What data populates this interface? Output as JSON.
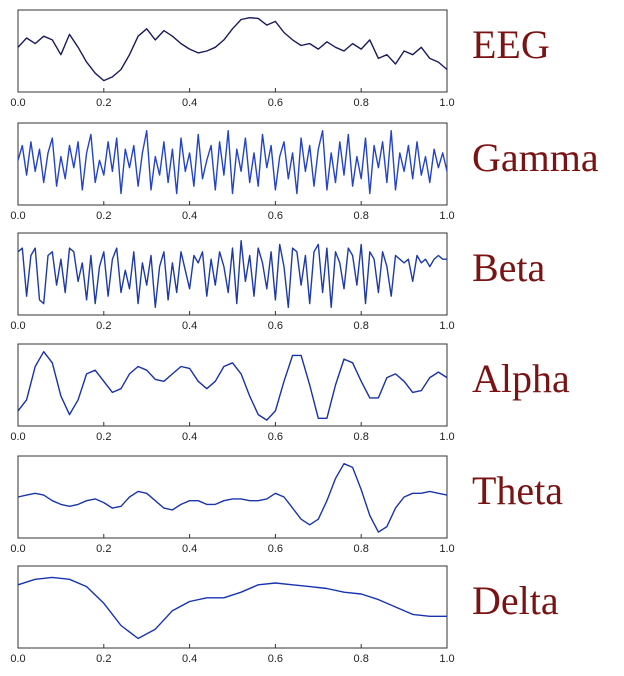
{
  "chart_data": [
    {
      "type": "line",
      "title": "EEG",
      "color": "#1b1b5c",
      "background": "#fbf6ef",
      "x": [
        0,
        0.02,
        0.04,
        0.06,
        0.08,
        0.1,
        0.12,
        0.14,
        0.16,
        0.18,
        0.2,
        0.22,
        0.24,
        0.26,
        0.28,
        0.3,
        0.32,
        0.34,
        0.36,
        0.38,
        0.4,
        0.42,
        0.44,
        0.46,
        0.48,
        0.5,
        0.52,
        0.54,
        0.56,
        0.58,
        0.6,
        0.62,
        0.64,
        0.66,
        0.68,
        0.7,
        0.72,
        0.74,
        0.76,
        0.78,
        0.8,
        0.82,
        0.84,
        0.86,
        0.88,
        0.9,
        0.92,
        0.94,
        0.96,
        0.98,
        1
      ],
      "values": [
        0.1,
        0.35,
        0.2,
        0.4,
        0.3,
        -0.1,
        0.45,
        0.1,
        -0.3,
        -0.6,
        -0.8,
        -0.7,
        -0.5,
        -0.1,
        0.4,
        0.6,
        0.3,
        0.55,
        0.4,
        0.2,
        0.05,
        -0.05,
        0.0,
        0.1,
        0.3,
        0.6,
        0.85,
        0.9,
        0.88,
        0.7,
        0.8,
        0.5,
        0.3,
        0.15,
        0.2,
        0.05,
        0.25,
        0.1,
        0.0,
        0.2,
        0.05,
        0.3,
        -0.2,
        -0.1,
        -0.35,
        0.0,
        -0.1,
        0.1,
        -0.2,
        -0.3,
        -0.5
      ],
      "xlim": [
        0,
        1
      ],
      "ylim": [
        -1,
        1
      ],
      "xticks": [
        {
          "value": 0,
          "label": "0.0"
        },
        {
          "value": 0.2,
          "label": "0.2"
        },
        {
          "value": 0.4,
          "label": "0.4"
        },
        {
          "value": 0.6,
          "label": "0.6"
        },
        {
          "value": 0.8,
          "label": "0.8"
        },
        {
          "value": 1,
          "label": "1.0"
        }
      ]
    },
    {
      "type": "line",
      "title": "Gamma",
      "color": "#2444c8",
      "x": [
        0,
        0.01,
        0.02,
        0.03,
        0.04,
        0.05,
        0.06,
        0.07,
        0.08,
        0.09,
        0.1,
        0.11,
        0.12,
        0.13,
        0.14,
        0.15,
        0.16,
        0.17,
        0.18,
        0.19,
        0.2,
        0.21,
        0.22,
        0.23,
        0.24,
        0.25,
        0.26,
        0.27,
        0.28,
        0.29,
        0.3,
        0.31,
        0.32,
        0.33,
        0.34,
        0.35,
        0.36,
        0.37,
        0.38,
        0.39,
        0.4,
        0.41,
        0.42,
        0.43,
        0.44,
        0.45,
        0.46,
        0.47,
        0.48,
        0.49,
        0.5,
        0.51,
        0.52,
        0.53,
        0.54,
        0.55,
        0.56,
        0.57,
        0.58,
        0.59,
        0.6,
        0.61,
        0.62,
        0.63,
        0.64,
        0.65,
        0.66,
        0.67,
        0.68,
        0.69,
        0.7,
        0.71,
        0.72,
        0.73,
        0.74,
        0.75,
        0.76,
        0.77,
        0.78,
        0.79,
        0.8,
        0.81,
        0.82,
        0.83,
        0.84,
        0.85,
        0.86,
        0.87,
        0.88,
        0.89,
        0.9,
        0.91,
        0.92,
        0.93,
        0.94,
        0.95,
        0.96,
        0.97,
        0.98,
        0.99,
        1
      ],
      "values": [
        0.1,
        0.5,
        -0.3,
        0.6,
        -0.2,
        0.4,
        -0.5,
        0.3,
        0.7,
        -0.6,
        0.2,
        -0.4,
        0.5,
        -0.1,
        0.6,
        -0.7,
        0.3,
        0.8,
        -0.5,
        0.1,
        -0.3,
        0.6,
        -0.2,
        0.7,
        -0.8,
        0.4,
        -0.1,
        0.5,
        -0.6,
        0.3,
        0.9,
        -0.7,
        0.2,
        -0.3,
        0.6,
        -0.5,
        0.4,
        -0.8,
        0.7,
        -0.2,
        0.3,
        -0.6,
        0.8,
        -0.4,
        0.1,
        0.5,
        -0.7,
        0.6,
        -0.3,
        0.9,
        -0.8,
        0.4,
        -0.2,
        0.7,
        -0.5,
        0.3,
        -0.6,
        0.8,
        -0.1,
        0.5,
        -0.7,
        0.2,
        0.6,
        -0.4,
        0.3,
        -0.8,
        0.7,
        -0.2,
        0.5,
        -0.6,
        0.4,
        0.9,
        -0.7,
        0.3,
        -0.5,
        0.6,
        -0.3,
        0.8,
        -0.6,
        0.2,
        -0.4,
        0.7,
        -0.8,
        0.5,
        -0.1,
        0.6,
        -0.5,
        0.9,
        -0.7,
        0.3,
        -0.2,
        0.5,
        -0.4,
        0.6,
        -0.3,
        0.2,
        -0.5,
        0.4,
        -0.1,
        0.3,
        -0.2
      ],
      "xlim": [
        0,
        1
      ],
      "ylim": [
        -1,
        1
      ],
      "xticks": [
        {
          "value": 0,
          "label": "0.0"
        },
        {
          "value": 0.2,
          "label": "0.2"
        },
        {
          "value": 0.4,
          "label": "0.4"
        },
        {
          "value": 0.6,
          "label": "0.6"
        },
        {
          "value": 0.8,
          "label": "0.8"
        },
        {
          "value": 1,
          "label": "1.0"
        }
      ]
    },
    {
      "type": "line",
      "title": "Beta",
      "color": "#1d3aa8",
      "x": [
        0,
        0.01,
        0.02,
        0.03,
        0.04,
        0.05,
        0.06,
        0.07,
        0.08,
        0.09,
        0.1,
        0.11,
        0.12,
        0.13,
        0.14,
        0.15,
        0.16,
        0.17,
        0.18,
        0.19,
        0.2,
        0.21,
        0.22,
        0.23,
        0.24,
        0.25,
        0.26,
        0.27,
        0.28,
        0.29,
        0.3,
        0.31,
        0.32,
        0.33,
        0.34,
        0.35,
        0.36,
        0.37,
        0.38,
        0.39,
        0.4,
        0.41,
        0.42,
        0.43,
        0.44,
        0.45,
        0.46,
        0.47,
        0.48,
        0.49,
        0.5,
        0.51,
        0.52,
        0.53,
        0.54,
        0.55,
        0.56,
        0.57,
        0.58,
        0.59,
        0.6,
        0.61,
        0.62,
        0.63,
        0.64,
        0.65,
        0.66,
        0.67,
        0.68,
        0.69,
        0.7,
        0.71,
        0.72,
        0.73,
        0.74,
        0.75,
        0.76,
        0.77,
        0.78,
        0.79,
        0.8,
        0.81,
        0.82,
        0.83,
        0.84,
        0.85,
        0.86,
        0.87,
        0.88,
        0.89,
        0.9,
        0.91,
        0.92,
        0.93,
        0.94,
        0.95,
        0.96,
        0.97,
        0.98,
        0.99,
        1
      ],
      "values": [
        0.6,
        0.7,
        -0.6,
        0.5,
        0.7,
        -0.7,
        -0.8,
        0.5,
        0.6,
        -0.3,
        0.4,
        -0.5,
        0.7,
        0.6,
        -0.2,
        0.3,
        -0.7,
        0.5,
        -0.8,
        0.2,
        0.6,
        -0.6,
        0.4,
        0.7,
        -0.5,
        0.1,
        -0.4,
        0.6,
        -0.8,
        0.3,
        -0.3,
        0.5,
        -0.9,
        0.2,
        0.6,
        -0.7,
        0.3,
        -0.5,
        0.6,
        0.1,
        -0.4,
        0.5,
        0.3,
        0.6,
        -0.6,
        0.4,
        -0.3,
        0.6,
        0.2,
        -0.5,
        0.7,
        -0.8,
        0.9,
        -0.2,
        0.5,
        -0.6,
        0.7,
        0.3,
        -0.4,
        0.6,
        -0.7,
        0.8,
        0.2,
        -0.9,
        0.7,
        0.6,
        -0.3,
        0.5,
        -0.8,
        0.6,
        0.8,
        -0.5,
        0.7,
        -0.9,
        0.6,
        0.3,
        -0.4,
        0.7,
        0.5,
        -0.3,
        0.8,
        -0.8,
        0.6,
        0.4,
        -0.5,
        0.6,
        0.2,
        -0.6,
        0.5,
        0.4,
        0.3,
        0.4,
        -0.2,
        0.5,
        0.3,
        0.4,
        0.2,
        0.4,
        0.5,
        0.4,
        0.4
      ],
      "xlim": [
        0,
        1
      ],
      "ylim": [
        -1,
        1
      ],
      "xticks": [
        {
          "value": 0,
          "label": "0.0"
        },
        {
          "value": 0.2,
          "label": "0.2"
        },
        {
          "value": 0.4,
          "label": "0.4"
        },
        {
          "value": 0.6,
          "label": "0.6"
        },
        {
          "value": 0.8,
          "label": "0.8"
        },
        {
          "value": 1,
          "label": "1.0"
        }
      ]
    },
    {
      "type": "line",
      "title": "Alpha",
      "color": "#1832a6",
      "x": [
        0,
        0.02,
        0.04,
        0.06,
        0.08,
        0.1,
        0.12,
        0.14,
        0.16,
        0.18,
        0.2,
        0.22,
        0.24,
        0.26,
        0.28,
        0.3,
        0.32,
        0.34,
        0.36,
        0.38,
        0.4,
        0.42,
        0.44,
        0.46,
        0.48,
        0.5,
        0.52,
        0.54,
        0.56,
        0.58,
        0.6,
        0.62,
        0.64,
        0.66,
        0.68,
        0.7,
        0.72,
        0.74,
        0.76,
        0.78,
        0.8,
        0.82,
        0.84,
        0.86,
        0.88,
        0.9,
        0.92,
        0.94,
        0.96,
        0.98,
        1
      ],
      "values": [
        -0.7,
        -0.4,
        0.5,
        0.9,
        0.6,
        -0.3,
        -0.8,
        -0.4,
        0.3,
        0.4,
        0.1,
        -0.2,
        -0.1,
        0.3,
        0.5,
        0.4,
        0.15,
        0.1,
        0.3,
        0.5,
        0.45,
        0.1,
        -0.1,
        0.1,
        0.5,
        0.6,
        0.3,
        -0.3,
        -0.8,
        -0.95,
        -0.7,
        0.1,
        0.8,
        0.8,
        0.0,
        -0.9,
        -0.9,
        0.0,
        0.7,
        0.6,
        0.1,
        -0.35,
        -0.35,
        0.2,
        0.3,
        0.1,
        -0.2,
        -0.15,
        0.2,
        0.35,
        0.2
      ],
      "xlim": [
        0,
        1
      ],
      "ylim": [
        -1,
        1
      ],
      "xticks": [
        {
          "value": 0,
          "label": "0.0"
        },
        {
          "value": 0.2,
          "label": "0.2"
        },
        {
          "value": 0.4,
          "label": "0.4"
        },
        {
          "value": 0.6,
          "label": "0.6"
        },
        {
          "value": 0.8,
          "label": "0.8"
        },
        {
          "value": 1,
          "label": "1.0"
        }
      ]
    },
    {
      "type": "line",
      "title": "Theta",
      "color": "#1a36a8",
      "x": [
        0,
        0.02,
        0.04,
        0.06,
        0.08,
        0.1,
        0.12,
        0.14,
        0.16,
        0.18,
        0.2,
        0.22,
        0.24,
        0.26,
        0.28,
        0.3,
        0.32,
        0.34,
        0.36,
        0.38,
        0.4,
        0.42,
        0.44,
        0.46,
        0.48,
        0.5,
        0.52,
        0.54,
        0.56,
        0.58,
        0.6,
        0.62,
        0.64,
        0.66,
        0.68,
        0.7,
        0.72,
        0.74,
        0.76,
        0.78,
        0.8,
        0.82,
        0.84,
        0.86,
        0.88,
        0.9,
        0.92,
        0.94,
        0.96,
        0.98,
        1
      ],
      "values": [
        0.0,
        0.05,
        0.1,
        0.05,
        -0.1,
        -0.2,
        -0.25,
        -0.2,
        -0.1,
        -0.05,
        -0.15,
        -0.3,
        -0.25,
        0.0,
        0.15,
        0.1,
        -0.1,
        -0.3,
        -0.35,
        -0.2,
        -0.1,
        -0.1,
        -0.2,
        -0.2,
        -0.1,
        -0.05,
        -0.05,
        -0.1,
        -0.1,
        -0.05,
        0.1,
        0.0,
        -0.3,
        -0.6,
        -0.75,
        -0.6,
        -0.1,
        0.5,
        0.9,
        0.8,
        0.2,
        -0.5,
        -0.95,
        -0.8,
        -0.3,
        0.0,
        0.1,
        0.1,
        0.15,
        0.1,
        0.05
      ],
      "xlim": [
        0,
        1
      ],
      "ylim": [
        -1,
        1
      ],
      "xticks": [
        {
          "value": 0,
          "label": "0.0"
        },
        {
          "value": 0.2,
          "label": "0.2"
        },
        {
          "value": 0.4,
          "label": "0.4"
        },
        {
          "value": 0.6,
          "label": "0.6"
        },
        {
          "value": 0.8,
          "label": "0.8"
        },
        {
          "value": 1,
          "label": "1.0"
        }
      ]
    },
    {
      "type": "line",
      "title": "Delta",
      "color": "#1734b0",
      "x": [
        0,
        0.04,
        0.08,
        0.12,
        0.16,
        0.2,
        0.24,
        0.28,
        0.32,
        0.36,
        0.4,
        0.44,
        0.48,
        0.52,
        0.56,
        0.6,
        0.64,
        0.68,
        0.72,
        0.76,
        0.8,
        0.84,
        0.88,
        0.92,
        0.96,
        1
      ],
      "values": [
        0.6,
        0.75,
        0.8,
        0.75,
        0.55,
        0.1,
        -0.5,
        -0.85,
        -0.6,
        -0.1,
        0.15,
        0.25,
        0.25,
        0.4,
        0.6,
        0.65,
        0.6,
        0.55,
        0.5,
        0.4,
        0.35,
        0.2,
        0.0,
        -0.2,
        -0.25,
        -0.25
      ],
      "xlim": [
        0,
        1
      ],
      "ylim": [
        -1,
        1
      ],
      "xticks": [
        {
          "value": 0,
          "label": "0.0"
        },
        {
          "value": 0.2,
          "label": "0.2"
        },
        {
          "value": 0.4,
          "label": "0.4"
        },
        {
          "value": 0.6,
          "label": "0.6"
        },
        {
          "value": 0.8,
          "label": "0.8"
        },
        {
          "value": 1,
          "label": "1.0"
        }
      ]
    }
  ]
}
